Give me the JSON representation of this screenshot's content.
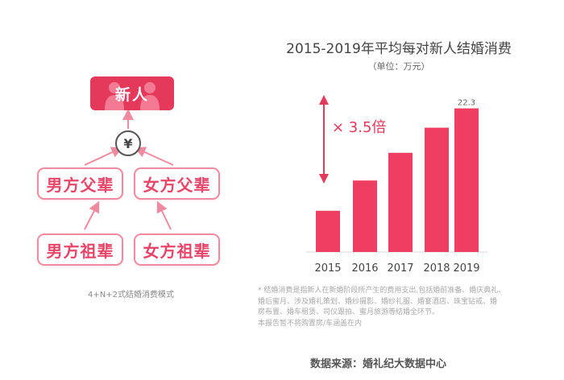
{
  "diagram": {
    "center_label": "新人",
    "currency_symbol": "¥",
    "parents": [
      "男方父辈",
      "女方父辈"
    ],
    "grandparents": [
      "男方祖辈",
      "女方祖辈"
    ],
    "caption": "4+N+2式结婚消费模式",
    "colors": {
      "accent": "#e5395c",
      "outline": "#f08aa0"
    }
  },
  "chart_data": {
    "type": "bar",
    "title": "2015-2019年平均每对新人结婚消费",
    "subtitle": "（单位：万元）",
    "categories": [
      "2015",
      "2016",
      "2017",
      "2018",
      "2019"
    ],
    "values": [
      6.4,
      11.1,
      15.4,
      19.3,
      22.3
    ],
    "data_labels": {
      "2019": "22.3"
    },
    "annotation": "× 3.5倍",
    "ylim": [
      0,
      25
    ],
    "grid": false,
    "bar_color": "#ee3f62",
    "annotation_color": "#e5395c"
  },
  "notes": [
    "* 结婚消费是指新人在新婚阶段所产生的费用支出,包括婚前准备、婚庆典礼、",
    "  婚后蜜月、涉及婚礼策划、婚纱摄影、婚纱礼服、婚宴酒店、珠宝钻戒、婚",
    "  房布置、婚车租赁、司仪跟拍、蜜月旅游等结婚全环节。",
    "  本报告暂不将购置房/车涵盖在内"
  ],
  "source": "数据来源：婚礼纪大数据中心"
}
